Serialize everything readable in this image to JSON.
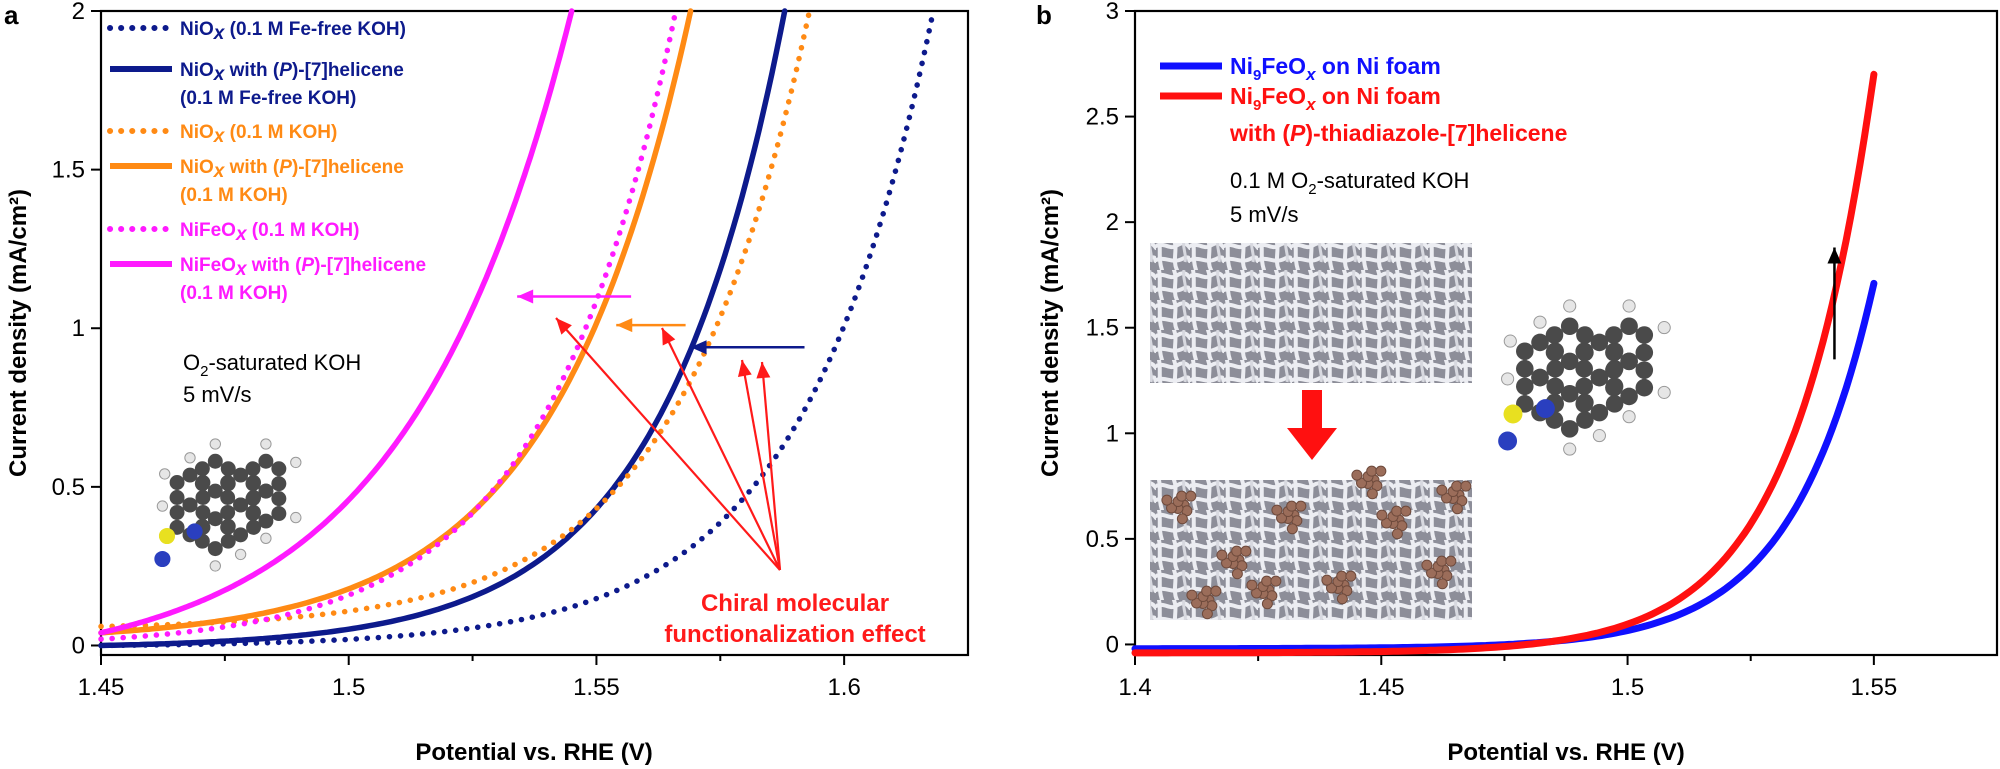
{
  "colors": {
    "navy": "#0d1a8c",
    "orange": "#ff8a14",
    "magenta": "#ff1aff",
    "blue": "#1010ff",
    "red": "#ff1010",
    "arrow_red": "#ff1a1a",
    "foam_bg": "#9a9aa4",
    "foam_strand": "#e8e8ee",
    "particle": "#9b6d5a",
    "atom_c": "#4a4a4a",
    "atom_h": "#e6e6e6",
    "atom_s": "#e8e020",
    "atom_n": "#2a3fbf"
  },
  "panel_a": {
    "panel_label": "a",
    "annotation": {
      "line1": "Chiral molecular",
      "line2": "functionalization effect"
    },
    "conditions": {
      "line1_pre": "O",
      "line1_sub": "2",
      "line1_post": "-saturated KOH",
      "line2": "5 mV/s"
    },
    "legend": [
      {
        "series": 0,
        "line1": {
          "pre": "NiO",
          "it": "x",
          "post": " (0.1 M Fe-free KOH)"
        }
      },
      {
        "series": 1,
        "line1": {
          "pre": "NiO",
          "it": "x",
          "mid": " with (",
          "it2": "P",
          "post": ")-[7]helicene"
        },
        "line2": "(0.1 M Fe-free KOH)"
      },
      {
        "series": 2,
        "line1": {
          "pre": "NiO",
          "it": "x",
          "post": " (0.1 M KOH)"
        }
      },
      {
        "series": 3,
        "line1": {
          "pre": "NiO",
          "it": "x",
          "mid": " with (",
          "it2": "P",
          "post": ")-[7]helicene"
        },
        "line2": "(0.1 M KOH)"
      },
      {
        "series": 4,
        "line1": {
          "pre": "NiFeO",
          "it": "x",
          "post": " (0.1 M KOH)"
        }
      },
      {
        "series": 5,
        "line1": {
          "pre": "NiFeO",
          "it": "x",
          "mid": " with (",
          "it2": "P",
          "post": ")-[7]helicene"
        },
        "line2": "(0.1 M KOH)"
      }
    ]
  },
  "panel_b": {
    "panel_label": "b",
    "conditions": {
      "line1_pre": "0.1 M O",
      "line1_sub": "2",
      "line1_post": "-saturated KOH",
      "line2": "5 mV/s"
    },
    "legend": [
      {
        "series": 0,
        "pre": "Ni",
        "sub": "9",
        "mid": "FeO",
        "it": "x",
        "post": " on Ni foam"
      },
      {
        "series": 1,
        "pre": "Ni",
        "sub": "9",
        "mid": "FeO",
        "it": "x",
        "post": " on Ni foam",
        "line2_pre": "with (",
        "line2_it": "P",
        "line2_post": ")-thiadiazole-[7]helicene"
      }
    ]
  },
  "chart_data": [
    {
      "type": "line",
      "title": "",
      "xlabel": "Potential vs. RHE (V)",
      "ylabel": "Current density (mA/cm²)",
      "xlim": [
        1.45,
        1.625
      ],
      "ylim": [
        -0.03,
        2.0
      ],
      "xticks": [
        1.45,
        1.5,
        1.55,
        1.6
      ],
      "xtick_labels": [
        "1.45",
        "1.5",
        "1.55",
        "1.6"
      ],
      "yticks": [
        0,
        0.5,
        1,
        1.5,
        2
      ],
      "ytick_labels": [
        "0",
        "0.5",
        "1",
        "1.5",
        "2"
      ],
      "grid": false,
      "legend_position": "top-left",
      "series": [
        {
          "name": "NiOx (0.1 M Fe-free KOH)",
          "color": "#0d1a8c",
          "style": "dotted",
          "x0": 1.45,
          "x1": 1.618,
          "y_start": 0.0,
          "y_end": 2.0,
          "k": 38
        },
        {
          "name": "NiOx with (P)-[7]helicene (0.1 M Fe-free KOH)",
          "color": "#0d1a8c",
          "style": "solid",
          "x0": 1.45,
          "x1": 1.588,
          "y_start": 0.0,
          "y_end": 2.0,
          "k": 40
        },
        {
          "name": "NiOx (0.1 M KOH)",
          "color": "#ff8a14",
          "style": "dotted",
          "x0": 1.45,
          "x1": 1.593,
          "y_start": 0.06,
          "y_end": 2.0,
          "k": 38
        },
        {
          "name": "NiOx with (P)-[7]helicene (0.1 M KOH)",
          "color": "#ff8a14",
          "style": "solid",
          "x0": 1.45,
          "x1": 1.569,
          "y_start": 0.04,
          "y_end": 2.0,
          "k": 36
        },
        {
          "name": "NiFeOx (0.1 M KOH)",
          "color": "#ff1aff",
          "style": "dotted",
          "x0": 1.45,
          "x1": 1.566,
          "y_start": 0.02,
          "y_end": 2.0,
          "k": 38
        },
        {
          "name": "NiFeOx with (P)-[7]helicene (0.1 M KOH)",
          "color": "#ff1aff",
          "style": "solid",
          "x0": 1.45,
          "x1": 1.545,
          "y_start": 0.04,
          "y_end": 2.0,
          "k": 30
        }
      ],
      "annotations": [
        {
          "type": "shift-arrow",
          "color": "#0d1a8c",
          "from": [
            1.592,
            0.94
          ],
          "to": [
            1.569,
            0.94
          ]
        },
        {
          "type": "shift-arrow",
          "color": "#ff8a14",
          "from": [
            1.568,
            1.01
          ],
          "to": [
            1.554,
            1.01
          ]
        },
        {
          "type": "shift-arrow",
          "color": "#ff1aff",
          "from": [
            1.557,
            1.1
          ],
          "to": [
            1.534,
            1.1
          ]
        }
      ]
    },
    {
      "type": "line",
      "title": "",
      "xlabel": "Potential vs. RHE (V)",
      "ylabel": "Current density (mA/cm²)",
      "xlim": [
        1.4,
        1.575
      ],
      "ylim": [
        -0.05,
        3.0
      ],
      "xticks": [
        1.4,
        1.45,
        1.5,
        1.55
      ],
      "xtick_labels": [
        "1.4",
        "1.45",
        "1.5",
        "1.55"
      ],
      "yticks": [
        0,
        0.5,
        1,
        1.5,
        2,
        2.5,
        3
      ],
      "ytick_labels": [
        "0",
        "0.5",
        "1",
        "1.5",
        "2",
        "2.5",
        "3"
      ],
      "grid": false,
      "legend_position": "top-left",
      "series": [
        {
          "name": "Ni9FeOx on Ni foam",
          "color": "#1010ff",
          "style": "solid",
          "x0": 1.4,
          "x1": 1.55,
          "y_start": -0.02,
          "y_end": 1.71,
          "k": 60
        },
        {
          "name": "Ni9FeOx on Ni foam with (P)-thiadiazole-[7]helicene",
          "color": "#ff1010",
          "style": "solid",
          "x0": 1.4,
          "x1": 1.55,
          "y_start": -0.04,
          "y_end": 2.7,
          "k": 60
        }
      ],
      "annotations": [
        {
          "type": "increase-arrow",
          "color": "#000000",
          "from": [
            1.542,
            1.35
          ],
          "to": [
            1.542,
            1.88
          ]
        }
      ]
    }
  ]
}
